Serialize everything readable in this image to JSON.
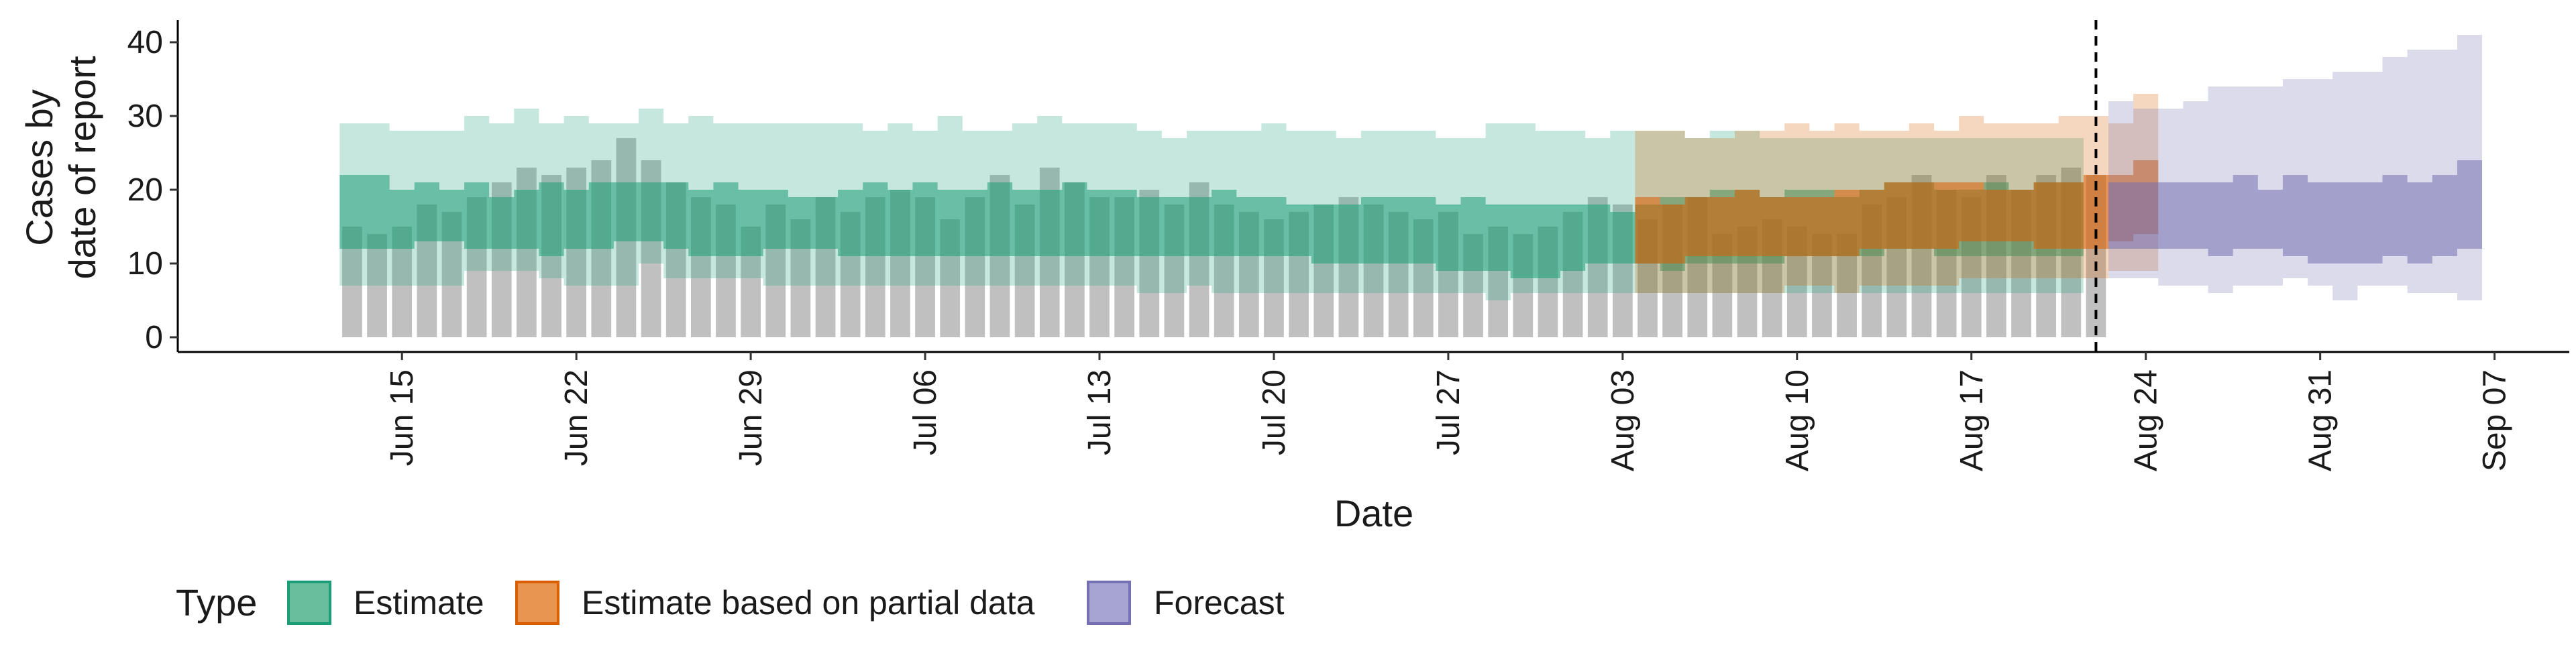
{
  "chart_data": {
    "type": "area",
    "title": "",
    "xlabel": "Date",
    "ylabel_lines": [
      "Cases by",
      "date of report"
    ],
    "ylim": [
      -2,
      43
    ],
    "xlim": [
      "2021-06-06",
      "2021-09-10"
    ],
    "y_ticks": [
      0,
      10,
      20,
      30,
      40
    ],
    "x_ticks": [
      {
        "date": "2021-06-15",
        "label": "Jun 15"
      },
      {
        "date": "2021-06-22",
        "label": "Jun 22"
      },
      {
        "date": "2021-06-29",
        "label": "Jun 29"
      },
      {
        "date": "2021-07-06",
        "label": "Jul 06"
      },
      {
        "date": "2021-07-13",
        "label": "Jul 13"
      },
      {
        "date": "2021-07-20",
        "label": "Jul 20"
      },
      {
        "date": "2021-07-27",
        "label": "Jul 27"
      },
      {
        "date": "2021-08-03",
        "label": "Aug 03"
      },
      {
        "date": "2021-08-10",
        "label": "Aug 10"
      },
      {
        "date": "2021-08-17",
        "label": "Aug 17"
      },
      {
        "date": "2021-08-24",
        "label": "Aug 24"
      },
      {
        "date": "2021-08-31",
        "label": "Aug 31"
      },
      {
        "date": "2021-09-07",
        "label": "Sep 07"
      }
    ],
    "vline_date": "2021-08-22",
    "bars": {
      "start": "2021-06-13",
      "values": [
        15,
        14,
        15,
        18,
        17,
        19,
        21,
        23,
        22,
        23,
        24,
        27,
        24,
        21,
        19,
        18,
        15,
        18,
        16,
        19,
        17,
        19,
        20,
        19,
        16,
        19,
        22,
        18,
        23,
        21,
        19,
        19,
        20,
        18,
        21,
        18,
        17,
        16,
        17,
        18,
        19,
        18,
        17,
        16,
        17,
        14,
        15,
        14,
        15,
        17,
        19,
        18,
        16,
        18,
        19,
        14,
        15,
        16,
        15,
        14,
        14,
        18,
        19,
        22,
        20,
        19,
        22,
        20,
        22,
        23,
        22
      ]
    },
    "series": [
      {
        "name": "Estimate",
        "color": "#1B9E77",
        "start": "2021-06-13",
        "inner_lower": [
          12,
          12,
          12,
          13,
          13,
          12,
          12,
          12,
          11,
          12,
          12,
          13,
          13,
          12,
          11,
          11,
          11,
          12,
          12,
          12,
          11,
          11,
          11,
          11,
          11,
          11,
          11,
          11,
          11,
          11,
          11,
          11,
          11,
          11,
          11,
          11,
          11,
          11,
          11,
          10,
          10,
          10,
          10,
          10,
          9,
          9,
          9,
          8,
          8,
          9,
          10,
          10,
          10,
          9,
          10,
          10,
          10,
          10,
          11,
          11,
          11,
          11,
          12,
          12,
          11,
          11,
          11,
          11,
          11,
          11
        ],
        "inner_upper": [
          22,
          22,
          20,
          21,
          20,
          21,
          19,
          20,
          21,
          20,
          21,
          21,
          21,
          21,
          20,
          21,
          20,
          20,
          19,
          19,
          20,
          21,
          20,
          21,
          20,
          20,
          21,
          20,
          20,
          21,
          20,
          20,
          19,
          19,
          19,
          20,
          19,
          19,
          18,
          18,
          18,
          19,
          19,
          19,
          18,
          19,
          18,
          18,
          18,
          18,
          18,
          17,
          18,
          19,
          19,
          20,
          20,
          19,
          20,
          20,
          19,
          20,
          21,
          21,
          20,
          20,
          21,
          20,
          21,
          21
        ],
        "outer_lower": [
          7,
          7,
          7,
          7,
          7,
          9,
          9,
          9,
          8,
          7,
          7,
          7,
          10,
          8,
          8,
          8,
          8,
          7,
          7,
          7,
          7,
          7,
          7,
          7,
          7,
          7,
          7,
          7,
          7,
          7,
          7,
          7,
          6,
          6,
          7,
          6,
          6,
          6,
          6,
          6,
          6,
          6,
          6,
          6,
          6,
          6,
          5,
          6,
          6,
          6,
          6,
          6,
          6,
          6,
          6,
          6,
          6,
          6,
          6,
          6,
          6,
          6,
          6,
          6,
          6,
          6,
          6,
          6,
          6,
          6
        ],
        "outer_upper": [
          29,
          29,
          28,
          28,
          28,
          30,
          29,
          31,
          29,
          30,
          29,
          29,
          31,
          29,
          30,
          29,
          29,
          29,
          29,
          29,
          29,
          28,
          29,
          28,
          30,
          28,
          28,
          29,
          30,
          29,
          29,
          29,
          28,
          27,
          28,
          28,
          28,
          29,
          28,
          28,
          27,
          28,
          28,
          28,
          27,
          27,
          29,
          29,
          28,
          28,
          27,
          28,
          28,
          28,
          27,
          28,
          28,
          27,
          27,
          27,
          27,
          27,
          27,
          27,
          27,
          27,
          27,
          27,
          27,
          27
        ],
        "dates": []
      },
      {
        "name": "Estimate based on partial data",
        "color": "#D95F02",
        "start": "2021-08-04",
        "inner_lower": [
          10,
          10,
          11,
          11,
          11,
          11,
          11,
          11,
          11,
          12,
          12,
          12,
          12,
          13,
          13,
          13,
          12,
          12,
          12,
          13,
          14
        ],
        "inner_upper": [
          19,
          18,
          19,
          19,
          20,
          19,
          19,
          19,
          20,
          20,
          21,
          21,
          21,
          21,
          20,
          20,
          21,
          21,
          22,
          22,
          24
        ],
        "outer_lower": [
          6,
          6,
          6,
          6,
          6,
          6,
          7,
          7,
          6,
          7,
          7,
          7,
          7,
          8,
          8,
          8,
          8,
          8,
          8,
          9,
          9
        ],
        "outer_upper": [
          28,
          28,
          27,
          27,
          28,
          28,
          29,
          28,
          29,
          28,
          28,
          29,
          28,
          30,
          29,
          29,
          29,
          30,
          30,
          29,
          33
        ]
      },
      {
        "name": "Forecast",
        "color": "#7570B3",
        "start": "2021-08-23",
        "inner_lower": [
          12,
          12,
          12,
          12,
          11,
          12,
          12,
          11,
          10,
          10,
          10,
          11,
          10,
          11,
          12
        ],
        "inner_upper": [
          21,
          21,
          21,
          21,
          21,
          22,
          20,
          22,
          21,
          21,
          21,
          22,
          21,
          22,
          24
        ],
        "outer_lower": [
          8,
          8,
          7,
          7,
          6,
          7,
          7,
          8,
          7,
          5,
          7,
          7,
          6,
          6,
          5
        ],
        "outer_upper": [
          32,
          31,
          31,
          32,
          34,
          34,
          34,
          35,
          35,
          36,
          36,
          38,
          39,
          39,
          41
        ]
      }
    ],
    "legend": {
      "title": "Type",
      "position": "bottom",
      "items": [
        {
          "label": "Estimate",
          "fill": "#69BE9E",
          "stroke": "#1B9E77"
        },
        {
          "label": "Estimate based on partial data",
          "fill": "#E99552",
          "stroke": "#D95F02"
        },
        {
          "label": "Forecast",
          "fill": "#A7A4D3",
          "stroke": "#7570B3"
        }
      ]
    }
  }
}
